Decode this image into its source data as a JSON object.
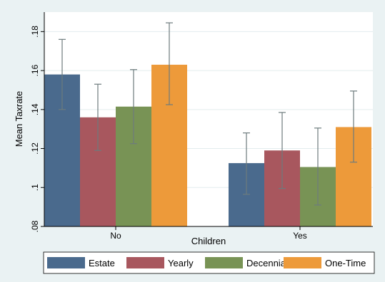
{
  "chart_data": {
    "type": "bar",
    "title": "",
    "xlabel": "Children",
    "ylabel": "Mean Taxrate",
    "categories": [
      "No",
      "Yes"
    ],
    "ylim": [
      0.08,
      0.19
    ],
    "yticks": [
      0.08,
      0.1,
      0.12,
      0.14,
      0.16,
      0.18
    ],
    "ytick_labels": [
      ".08",
      ".1",
      ".12",
      ".14",
      ".16",
      ".18"
    ],
    "grid": true,
    "legend_position": "bottom",
    "series": [
      {
        "name": "Estate",
        "color": "#4a6a8d",
        "values": [
          0.158,
          0.1125
        ],
        "ci_low": [
          0.14,
          0.0965
        ],
        "ci_high": [
          0.176,
          0.128
        ]
      },
      {
        "name": "Yearly",
        "color": "#a8575e",
        "values": [
          0.136,
          0.119
        ],
        "ci_low": [
          0.119,
          0.0995
        ],
        "ci_high": [
          0.153,
          0.1385
        ]
      },
      {
        "name": "Decennial",
        "color": "#789355",
        "values": [
          0.1415,
          0.1105
        ],
        "ci_low": [
          0.1225,
          0.091
        ],
        "ci_high": [
          0.1605,
          0.1305
        ]
      },
      {
        "name": "One-Time",
        "color": "#ed9a3a",
        "values": [
          0.163,
          0.131
        ],
        "ci_low": [
          0.1425,
          0.113
        ],
        "ci_high": [
          0.1845,
          0.1495
        ]
      }
    ]
  }
}
